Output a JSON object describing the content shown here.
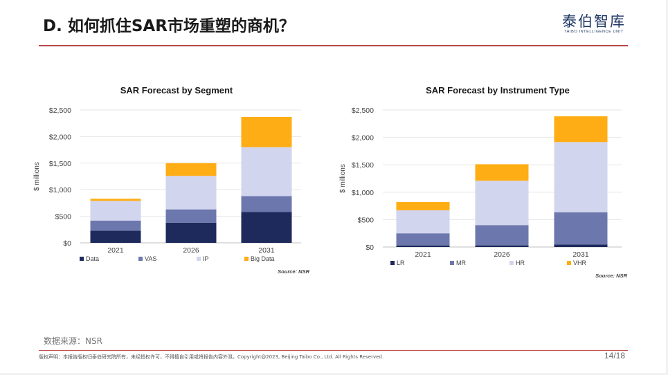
{
  "header": {
    "title": "D. 如何抓住SAR市场重塑的商机？",
    "logo_text": "泰伯智库",
    "logo_subtitle": "TAIBO INTELLIGENCE UNIT"
  },
  "footer": {
    "data_source": "数据来源：NSR",
    "copyright": "版权声明：本报告版权归泰伯研究院所有，未经授权许可，不得擅自引用或将报告内容外泄。Copyright@2023, Beijing Taibo Co., Ltd. All Rights Reserved.",
    "page_number": "14/18"
  },
  "chart_data": [
    {
      "type": "bar",
      "stacked": true,
      "title": "SAR Forecast by Segment",
      "ylabel": "$ millions",
      "xlabel": "",
      "categories": [
        "2021",
        "2026",
        "2031"
      ],
      "ylim": [
        0,
        2500
      ],
      "yticks": [
        0,
        500,
        1000,
        1500,
        2000,
        2500
      ],
      "ytick_labels": [
        "$0",
        "$500",
        "$1,000",
        "$1,500",
        "$2,000",
        "$2,500"
      ],
      "series": [
        {
          "name": "Data",
          "color": "#1f2a5c",
          "values": [
            230,
            380,
            580
          ]
        },
        {
          "name": "VAS",
          "color": "#6c78ad",
          "values": [
            190,
            250,
            300
          ]
        },
        {
          "name": "IP",
          "color": "#d2d5ee",
          "values": [
            370,
            630,
            920
          ]
        },
        {
          "name": "Big Data",
          "color": "#ffad14",
          "values": [
            40,
            240,
            570
          ]
        }
      ],
      "source": "Source: NSR",
      "legend_position": "bottom"
    },
    {
      "type": "bar",
      "stacked": true,
      "title": "SAR Forecast by Instrument Type",
      "ylabel": "$ millions",
      "xlabel": "",
      "categories": [
        "2021",
        "2026",
        "2031"
      ],
      "ylim": [
        0,
        2500
      ],
      "yticks": [
        0,
        500,
        1000,
        1500,
        2000,
        2500
      ],
      "ytick_labels": [
        "$0",
        "$500",
        "$1,000",
        "$1,500",
        "$2,000",
        "$2,500"
      ],
      "series": [
        {
          "name": "LR",
          "color": "#1f2a5c",
          "values": [
            25,
            30,
            45
          ]
        },
        {
          "name": "MR",
          "color": "#6c78ad",
          "values": [
            225,
            370,
            590
          ]
        },
        {
          "name": "HR",
          "color": "#d2d5ee",
          "values": [
            420,
            810,
            1280
          ]
        },
        {
          "name": "VHR",
          "color": "#ffad14",
          "values": [
            150,
            300,
            470
          ]
        }
      ],
      "source": "Source: NSR",
      "legend_position": "bottom"
    }
  ]
}
